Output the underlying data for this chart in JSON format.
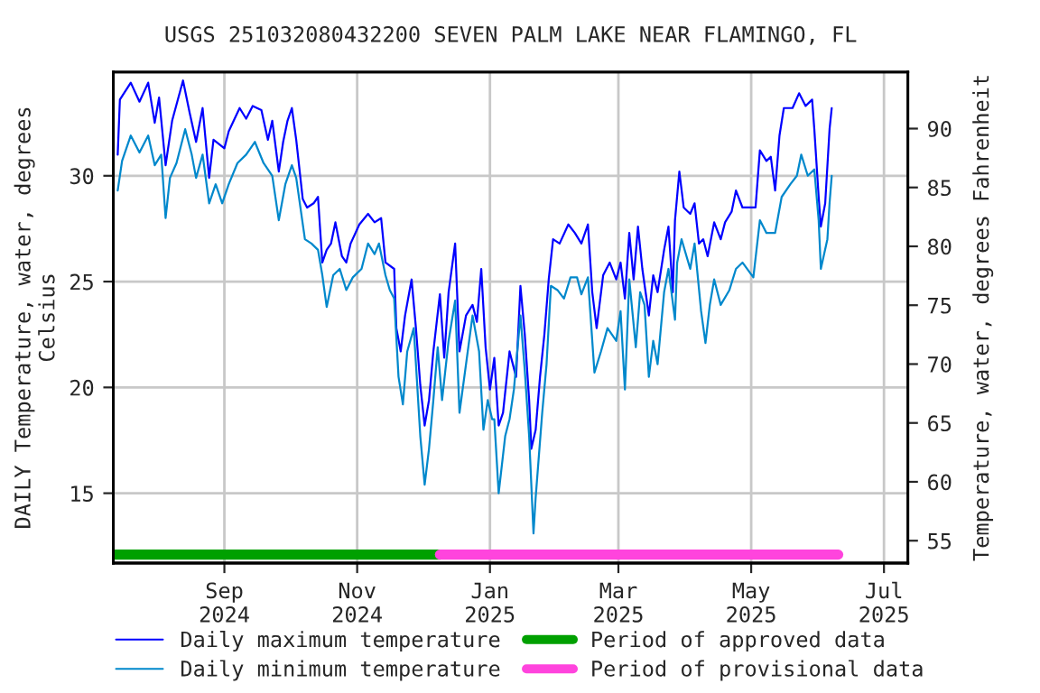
{
  "chart_data": {
    "type": "line",
    "title": "USGS 251032080432200 SEVEN PALM LAKE NEAR FLAMINGO, FL",
    "ylabel": "DAILY Temperature, water, degrees\nCelsius",
    "y2label": "Temperature, water, degrees Fahrenheit",
    "xlim": [
      "2024-07-12",
      "2025-07-12"
    ],
    "xticks": [
      {
        "value": "2024-09-01",
        "label": "Sep\n2024"
      },
      {
        "value": "2024-11-01",
        "label": "Nov\n2024"
      },
      {
        "value": "2025-01-01",
        "label": "Jan\n2025"
      },
      {
        "value": "2025-03-01",
        "label": "Mar\n2025"
      },
      {
        "value": "2025-05-01",
        "label": "May\n2025"
      },
      {
        "value": "2025-07-01",
        "label": "Jul\n2025"
      }
    ],
    "ylim": [
      11.7,
      34.9
    ],
    "yticks": [
      15,
      20,
      25,
      30
    ],
    "y2lim": [
      53.1,
      94.8
    ],
    "y2ticks": [
      55,
      60,
      65,
      70,
      75,
      80,
      85,
      90
    ],
    "grid": true,
    "legend": "bottom",
    "series": [
      {
        "name": "Daily maximum temperature",
        "color": "#0000ff",
        "x": [
          "2024-07-14",
          "2024-07-15",
          "2024-07-20",
          "2024-07-24",
          "2024-07-28",
          "2024-07-31",
          "2024-08-02",
          "2024-08-05",
          "2024-08-08",
          "2024-08-13",
          "2024-08-16",
          "2024-08-19",
          "2024-08-22",
          "2024-08-25",
          "2024-08-27",
          "2024-09-01",
          "2024-09-03",
          "2024-09-08",
          "2024-09-11",
          "2024-09-14",
          "2024-09-18",
          "2024-09-21",
          "2024-09-23",
          "2024-09-26",
          "2024-09-28",
          "2024-09-30",
          "2024-10-02",
          "2024-10-04",
          "2024-10-07",
          "2024-10-09",
          "2024-10-12",
          "2024-10-14",
          "2024-10-16",
          "2024-10-18",
          "2024-10-20",
          "2024-10-22",
          "2024-10-25",
          "2024-10-27",
          "2024-10-29",
          "2024-11-02",
          "2024-11-06",
          "2024-11-09",
          "2024-11-12",
          "2024-11-14",
          "2024-11-18",
          "2024-11-19",
          "2024-11-21",
          "2024-11-23",
          "2024-11-26",
          "2024-11-28",
          "2024-11-30",
          "2024-12-02",
          "2024-12-04",
          "2024-12-06",
          "2024-12-09",
          "2024-12-11",
          "2024-12-13",
          "2024-12-16",
          "2024-12-18",
          "2024-12-21",
          "2024-12-24",
          "2024-12-26",
          "2024-12-28",
          "2024-12-30",
          "2025-01-01",
          "2025-01-03",
          "2025-01-05",
          "2025-01-07",
          "2025-01-10",
          "2025-01-13",
          "2025-01-15",
          "2025-01-17",
          "2025-01-19",
          "2025-01-20",
          "2025-01-22",
          "2025-01-24",
          "2025-01-26",
          "2025-01-28",
          "2025-01-30",
          "2025-02-02",
          "2025-02-06",
          "2025-02-09",
          "2025-02-12",
          "2025-02-15",
          "2025-02-17",
          "2025-02-19",
          "2025-02-22",
          "2025-02-25",
          "2025-02-28",
          "2025-03-02",
          "2025-03-04",
          "2025-03-06",
          "2025-03-08",
          "2025-03-10",
          "2025-03-12",
          "2025-03-15",
          "2025-03-17",
          "2025-03-19",
          "2025-03-22",
          "2025-03-24",
          "2025-03-26",
          "2025-03-27",
          "2025-03-29",
          "2025-03-31",
          "2025-04-03",
          "2025-04-05",
          "2025-04-07",
          "2025-04-09",
          "2025-04-11",
          "2025-04-14",
          "2025-04-17",
          "2025-04-19",
          "2025-04-22",
          "2025-04-24",
          "2025-04-27",
          "2025-05-03",
          "2025-05-05",
          "2025-05-08",
          "2025-05-10",
          "2025-05-12",
          "2025-05-14",
          "2025-05-16",
          "2025-05-20",
          "2025-05-23",
          "2025-05-26",
          "2025-05-29",
          "2025-05-30",
          "2025-06-01",
          "2025-06-02",
          "2025-06-04",
          "2025-06-06",
          "2025-06-07"
        ],
        "values": [
          31.0,
          33.6,
          34.4,
          33.5,
          34.4,
          32.5,
          33.7,
          30.5,
          32.6,
          34.5,
          33.0,
          31.6,
          33.2,
          29.9,
          31.7,
          31.3,
          32.1,
          33.2,
          32.7,
          33.3,
          33.1,
          31.7,
          32.6,
          30.2,
          31.6,
          32.6,
          33.2,
          31.7,
          28.9,
          28.5,
          28.7,
          29.0,
          25.9,
          26.5,
          26.8,
          27.8,
          26.2,
          25.9,
          26.8,
          27.7,
          28.2,
          27.8,
          28.0,
          25.9,
          25.6,
          22.8,
          21.7,
          23.4,
          25.1,
          22.8,
          20.1,
          18.2,
          19.4,
          21.7,
          24.4,
          21.4,
          24.5,
          26.8,
          21.7,
          23.4,
          23.9,
          23.1,
          25.6,
          21.9,
          19.9,
          21.4,
          18.2,
          18.8,
          21.7,
          20.5,
          24.8,
          22.5,
          19.4,
          17.1,
          18.0,
          20.5,
          22.5,
          25.1,
          27.0,
          26.8,
          27.7,
          27.3,
          26.8,
          27.7,
          24.5,
          22.8,
          25.3,
          25.9,
          25.1,
          25.9,
          24.2,
          27.3,
          25.1,
          27.6,
          25.6,
          23.4,
          25.3,
          24.5,
          26.5,
          27.6,
          24.5,
          27.9,
          30.2,
          28.5,
          28.2,
          28.7,
          26.8,
          27.0,
          26.2,
          27.8,
          27.0,
          27.8,
          28.3,
          29.3,
          28.5,
          28.5,
          31.2,
          30.7,
          30.9,
          29.3,
          31.9,
          33.2,
          33.2,
          33.9,
          33.3,
          33.6,
          32.2,
          29.0,
          27.6,
          28.7,
          32.2,
          33.2
        ]
      },
      {
        "name": "Daily minimum temperature",
        "color": "#0088cc",
        "x": [
          "2024-07-14",
          "2024-07-16",
          "2024-07-20",
          "2024-07-24",
          "2024-07-28",
          "2024-07-31",
          "2024-08-03",
          "2024-08-05",
          "2024-08-07",
          "2024-08-10",
          "2024-08-14",
          "2024-08-17",
          "2024-08-19",
          "2024-08-22",
          "2024-08-25",
          "2024-08-28",
          "2024-08-31",
          "2024-09-03",
          "2024-09-07",
          "2024-09-11",
          "2024-09-15",
          "2024-09-19",
          "2024-09-23",
          "2024-09-26",
          "2024-09-29",
          "2024-10-02",
          "2024-10-04",
          "2024-10-08",
          "2024-10-11",
          "2024-10-14",
          "2024-10-16",
          "2024-10-18",
          "2024-10-21",
          "2024-10-24",
          "2024-10-27",
          "2024-10-30",
          "2024-11-03",
          "2024-11-06",
          "2024-11-09",
          "2024-11-11",
          "2024-11-14",
          "2024-11-16",
          "2024-11-18",
          "2024-11-20",
          "2024-11-22",
          "2024-11-24",
          "2024-11-27",
          "2024-11-30",
          "2024-12-02",
          "2024-12-04",
          "2024-12-06",
          "2024-12-08",
          "2024-12-10",
          "2024-12-13",
          "2024-12-16",
          "2024-12-18",
          "2024-12-21",
          "2024-12-24",
          "2024-12-27",
          "2024-12-29",
          "2024-12-31",
          "2025-01-02",
          "2025-01-03",
          "2025-01-05",
          "2025-01-08",
          "2025-01-10",
          "2025-01-12",
          "2025-01-15",
          "2025-01-17",
          "2025-01-19",
          "2025-01-21",
          "2025-01-22",
          "2025-01-25",
          "2025-01-27",
          "2025-01-29",
          "2025-02-01",
          "2025-02-04",
          "2025-02-07",
          "2025-02-10",
          "2025-02-12",
          "2025-02-15",
          "2025-02-18",
          "2025-02-21",
          "2025-02-24",
          "2025-02-28",
          "2025-03-02",
          "2025-03-04",
          "2025-03-06",
          "2025-03-09",
          "2025-03-11",
          "2025-03-13",
          "2025-03-15",
          "2025-03-17",
          "2025-03-19",
          "2025-03-22",
          "2025-03-24",
          "2025-03-27",
          "2025-03-28",
          "2025-03-30",
          "2025-04-03",
          "2025-04-05",
          "2025-04-08",
          "2025-04-10",
          "2025-04-12",
          "2025-04-14",
          "2025-04-17",
          "2025-04-21",
          "2025-04-24",
          "2025-04-27",
          "2025-05-02",
          "2025-05-05",
          "2025-05-08",
          "2025-05-12",
          "2025-05-15",
          "2025-05-19",
          "2025-05-22",
          "2025-05-24",
          "2025-05-27",
          "2025-05-30",
          "2025-06-01",
          "2025-06-02",
          "2025-06-05",
          "2025-06-06",
          "2025-06-07"
        ],
        "values": [
          29.3,
          30.7,
          31.9,
          31.1,
          31.9,
          30.5,
          31.0,
          28.0,
          29.9,
          30.6,
          32.2,
          31.0,
          29.9,
          31.0,
          28.7,
          29.6,
          28.7,
          29.6,
          30.6,
          31.0,
          31.6,
          30.6,
          30.0,
          27.9,
          29.6,
          30.5,
          29.9,
          27.0,
          26.8,
          26.5,
          25.3,
          23.8,
          25.3,
          25.6,
          24.6,
          25.2,
          25.6,
          26.8,
          26.3,
          26.8,
          25.3,
          24.6,
          24.2,
          20.5,
          19.2,
          21.7,
          22.8,
          17.7,
          15.4,
          17.1,
          19.4,
          21.9,
          19.4,
          22.2,
          24.1,
          18.8,
          21.1,
          23.4,
          21.7,
          18.0,
          19.4,
          18.5,
          18.5,
          15.0,
          17.7,
          18.5,
          19.9,
          23.4,
          20.8,
          17.7,
          13.1,
          14.8,
          18.8,
          21.1,
          24.8,
          24.6,
          24.2,
          25.2,
          25.2,
          24.4,
          25.2,
          20.7,
          21.7,
          22.8,
          22.2,
          23.6,
          19.9,
          25.1,
          21.9,
          24.5,
          23.9,
          20.5,
          22.2,
          21.1,
          24.5,
          25.6,
          23.2,
          25.9,
          27.0,
          25.6,
          26.8,
          23.6,
          22.1,
          23.9,
          25.1,
          23.9,
          24.6,
          25.6,
          25.9,
          25.2,
          27.9,
          27.3,
          27.3,
          29.0,
          29.6,
          30.0,
          31.0,
          30.0,
          30.3,
          27.9,
          25.6,
          27.0,
          28.7,
          30.0
        ]
      },
      {
        "name": "Period of approved data",
        "color": "#00a000",
        "x": [
          "2024-07-12",
          "2024-12-09"
        ],
        "values": [
          12.1,
          12.1
        ]
      },
      {
        "name": "Period of provisional data",
        "color": "#ff44dd",
        "x": [
          "2024-12-09",
          "2025-06-10"
        ],
        "values": [
          12.1,
          12.1
        ]
      }
    ]
  }
}
